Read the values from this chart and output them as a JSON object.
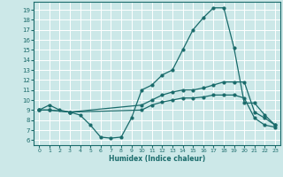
{
  "title": "",
  "xlabel": "Humidex (Indice chaleur)",
  "bg_color": "#cce8e8",
  "line_color": "#1a6b6b",
  "grid_color": "#ffffff",
  "xlim": [
    -0.5,
    23.5
  ],
  "ylim": [
    5.5,
    19.8
  ],
  "xticks": [
    0,
    1,
    2,
    3,
    4,
    5,
    6,
    7,
    8,
    9,
    10,
    11,
    12,
    13,
    14,
    15,
    16,
    17,
    18,
    19,
    20,
    21,
    22,
    23
  ],
  "yticks": [
    6,
    7,
    8,
    9,
    10,
    11,
    12,
    13,
    14,
    15,
    16,
    17,
    18,
    19
  ],
  "line1_x": [
    0,
    1,
    2,
    3,
    4,
    5,
    6,
    7,
    8,
    9,
    10,
    11,
    12,
    13,
    14,
    15,
    16,
    17,
    18,
    19,
    20,
    21,
    22,
    23
  ],
  "line1_y": [
    9.0,
    9.5,
    9.0,
    8.8,
    8.5,
    7.5,
    6.3,
    6.2,
    6.3,
    8.2,
    11.0,
    11.5,
    12.5,
    13.0,
    15.0,
    17.0,
    18.2,
    19.2,
    19.2,
    15.2,
    9.7,
    9.7,
    8.5,
    7.5
  ],
  "line2_x": [
    0,
    1,
    3,
    10,
    11,
    12,
    13,
    14,
    15,
    16,
    17,
    18,
    19,
    20,
    21,
    22,
    23
  ],
  "line2_y": [
    9.0,
    9.0,
    8.8,
    9.5,
    10.0,
    10.5,
    10.8,
    11.0,
    11.0,
    11.2,
    11.5,
    11.8,
    11.8,
    11.8,
    8.8,
    8.2,
    7.5
  ],
  "line3_x": [
    0,
    1,
    3,
    10,
    11,
    12,
    13,
    14,
    15,
    16,
    17,
    18,
    19,
    20,
    21,
    22,
    23
  ],
  "line3_y": [
    9.0,
    9.0,
    8.8,
    9.0,
    9.5,
    9.8,
    10.0,
    10.2,
    10.2,
    10.3,
    10.5,
    10.5,
    10.5,
    10.2,
    8.2,
    7.5,
    7.3
  ]
}
